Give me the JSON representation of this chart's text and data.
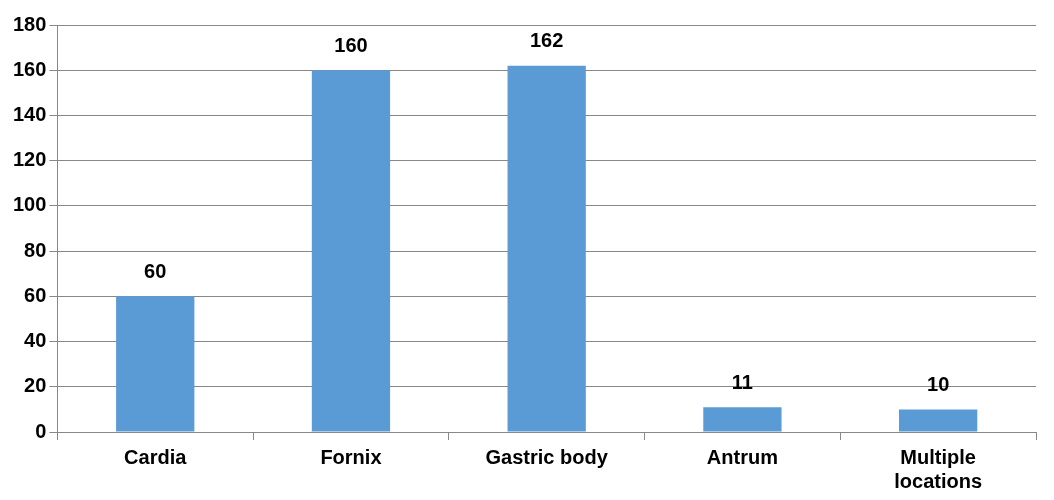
{
  "chart_data": {
    "type": "bar",
    "categories": [
      "Cardia",
      "Fornix",
      "Gastric body",
      "Antrum",
      "Multiple locations"
    ],
    "values": [
      60,
      160,
      162,
      11,
      10
    ],
    "color": "#5b9bd5",
    "ylim": [
      0,
      180
    ],
    "yticks": [
      0,
      20,
      40,
      60,
      80,
      100,
      120,
      140,
      160,
      180
    ],
    "grid": "y",
    "data_labels": true,
    "legend": false
  }
}
